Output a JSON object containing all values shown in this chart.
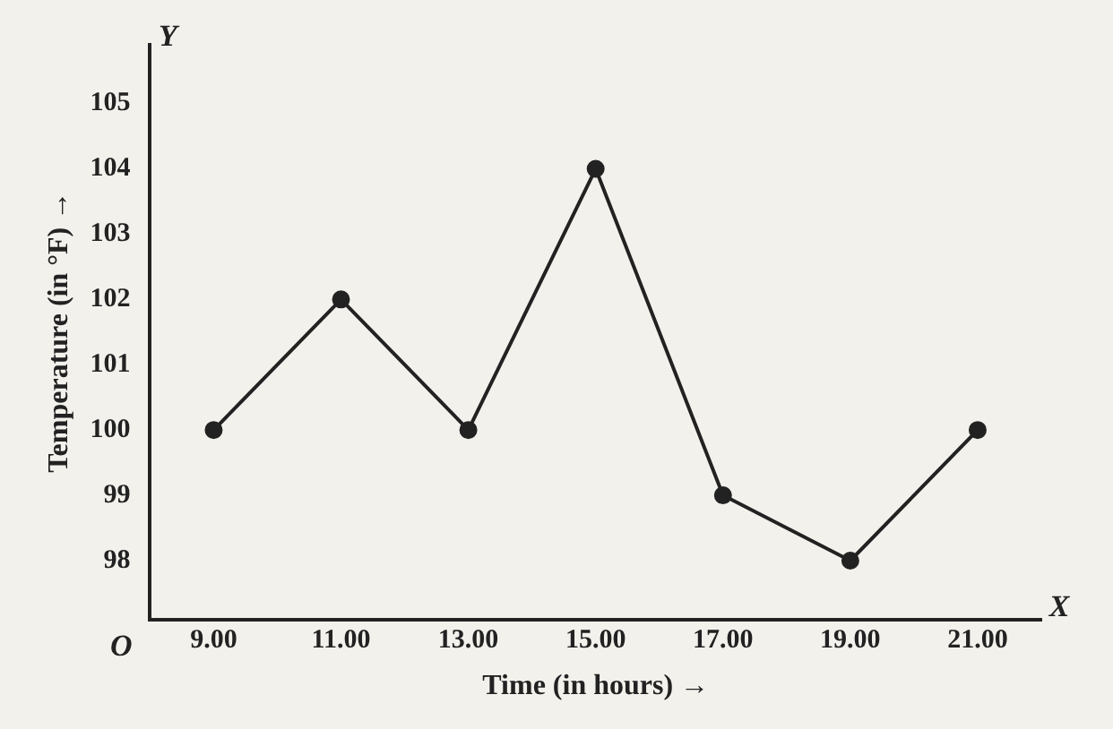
{
  "chart_data": {
    "type": "line",
    "xlabel": "Time (in hours) →",
    "ylabel": "Temperature (in °F) →",
    "categories": [
      "9.00",
      "11.00",
      "13.00",
      "15.00",
      "17.00",
      "19.00",
      "21.00"
    ],
    "values": [
      100,
      102,
      100,
      104,
      99,
      98,
      100
    ],
    "color": "#222222",
    "marker": "circle",
    "line_style": "solid",
    "ylim": [
      97.1,
      105.9
    ],
    "yticks": [
      98,
      99,
      100,
      101,
      102,
      103,
      104,
      105
    ],
    "grid": false,
    "legend": false,
    "annotations": [
      "O",
      "X",
      "Y"
    ]
  }
}
